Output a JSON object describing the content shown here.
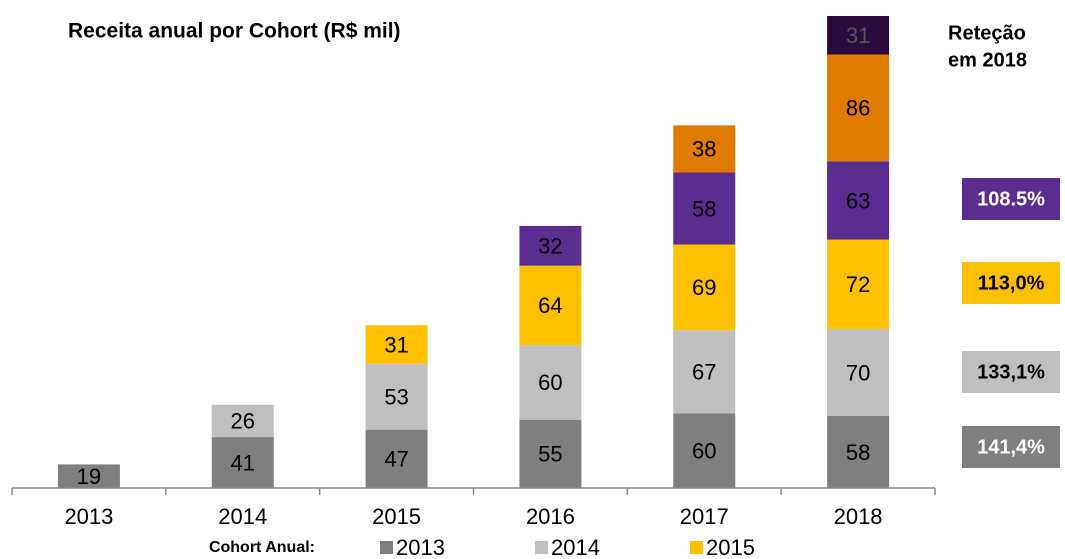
{
  "chart_data": {
    "type": "stacked_bar",
    "title": "Receita anual por Cohort (R$ mil)",
    "categories": [
      "2013",
      "2014",
      "2015",
      "2016",
      "2017",
      "2018"
    ],
    "series": [
      {
        "name": "2013",
        "color": "#7f7f7f",
        "values": [
          19,
          41,
          47,
          55,
          60,
          58
        ]
      },
      {
        "name": "2014",
        "color": "#bfbfbf",
        "values": [
          null,
          26,
          53,
          60,
          67,
          70
        ]
      },
      {
        "name": "2015",
        "color": "#ffc000",
        "values": [
          null,
          null,
          31,
          64,
          69,
          72
        ]
      },
      {
        "color": "#5b2d91",
        "values": [
          null,
          null,
          null,
          32,
          58,
          63
        ]
      },
      {
        "color": "#e07b00",
        "values": [
          null,
          null,
          null,
          null,
          38,
          86
        ]
      },
      {
        "color": "#2b0b3d",
        "values": [
          null,
          null,
          null,
          null,
          null,
          31
        ]
      }
    ],
    "ylim": [
      0,
      380
    ],
    "legend_title": "Cohort Anual:",
    "retention_title": [
      "Reteção",
      "em 2018"
    ],
    "retention": [
      {
        "label": "108.5%",
        "color": "#5b2d91",
        "text_color": "#ffffff"
      },
      {
        "label": "113,0%",
        "color": "#ffc000",
        "text_color": "#000000"
      },
      {
        "label": "133,1%",
        "color": "#bfbfbf",
        "text_color": "#000000"
      },
      {
        "label": "141,4%",
        "color": "#7f7f7f",
        "text_color": "#ffffff"
      }
    ]
  }
}
